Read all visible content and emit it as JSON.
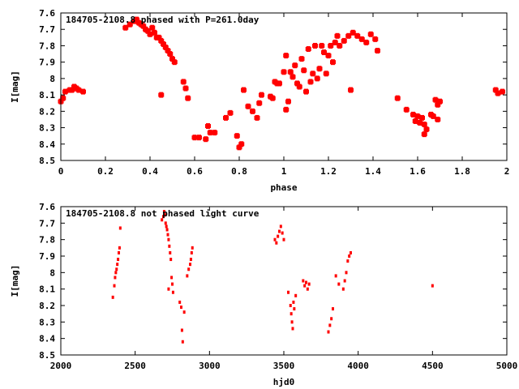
{
  "chart_data": [
    {
      "type": "scatter",
      "title": "184705-2108.8 phased with P=261.0day",
      "xlabel": "phase",
      "ylabel": "I[mag]",
      "xlim": [
        0,
        2
      ],
      "ylim": [
        8.5,
        7.6
      ],
      "y_inverted": true,
      "grid": false,
      "color": "#ff0000",
      "xticks": [
        0,
        0.2,
        0.4,
        0.6,
        0.8,
        1,
        1.2,
        1.4,
        1.6,
        1.8,
        2
      ],
      "xtick_labels": [
        "0",
        "0.2",
        "0.4",
        "0.6",
        "0.8",
        "1",
        "1.2",
        "1.4",
        "1.6",
        "1.8",
        "2"
      ],
      "yticks": [
        7.6,
        7.7,
        7.8,
        7.9,
        8.0,
        8.1,
        8.2,
        8.3,
        8.4,
        8.5
      ],
      "ytick_labels": [
        "7.6",
        "7.7",
        "7.8",
        "7.9",
        "8",
        "8.1",
        "8.2",
        "8.3",
        "8.4",
        "8.5"
      ],
      "points": [
        [
          0.0,
          8.14
        ],
        [
          0.01,
          8.12
        ],
        [
          0.02,
          8.08
        ],
        [
          0.04,
          8.07
        ],
        [
          0.05,
          8.07
        ],
        [
          0.06,
          8.05
        ],
        [
          0.07,
          8.06
        ],
        [
          0.08,
          8.07
        ],
        [
          0.1,
          8.08
        ],
        [
          0.29,
          7.69
        ],
        [
          0.31,
          7.67
        ],
        [
          0.33,
          7.65
        ],
        [
          0.34,
          7.64
        ],
        [
          0.35,
          7.66
        ],
        [
          0.36,
          7.67
        ],
        [
          0.37,
          7.68
        ],
        [
          0.38,
          7.7
        ],
        [
          0.39,
          7.71
        ],
        [
          0.4,
          7.73
        ],
        [
          0.41,
          7.69
        ],
        [
          0.42,
          7.72
        ],
        [
          0.43,
          7.75
        ],
        [
          0.44,
          7.75
        ],
        [
          0.45,
          7.77
        ],
        [
          0.46,
          7.79
        ],
        [
          0.47,
          7.81
        ],
        [
          0.48,
          7.83
        ],
        [
          0.49,
          7.85
        ],
        [
          0.5,
          7.88
        ],
        [
          0.51,
          7.9
        ],
        [
          0.45,
          8.1
        ],
        [
          0.55,
          8.02
        ],
        [
          0.56,
          8.06
        ],
        [
          0.57,
          8.12
        ],
        [
          0.6,
          8.36
        ],
        [
          0.62,
          8.36
        ],
        [
          0.65,
          8.37
        ],
        [
          0.66,
          8.29
        ],
        [
          0.67,
          8.33
        ],
        [
          0.69,
          8.33
        ],
        [
          0.74,
          8.24
        ],
        [
          0.76,
          8.21
        ],
        [
          0.79,
          8.35
        ],
        [
          0.8,
          8.42
        ],
        [
          0.81,
          8.4
        ],
        [
          0.82,
          8.07
        ],
        [
          0.84,
          8.17
        ],
        [
          0.86,
          8.2
        ],
        [
          0.88,
          8.24
        ],
        [
          0.89,
          8.15
        ],
        [
          0.9,
          8.1
        ],
        [
          0.94,
          8.11
        ],
        [
          0.95,
          8.12
        ],
        [
          0.96,
          8.02
        ],
        [
          0.97,
          8.03
        ],
        [
          0.98,
          8.03
        ],
        [
          1.0,
          7.96
        ],
        [
          1.01,
          7.86
        ],
        [
          1.01,
          8.19
        ],
        [
          1.02,
          8.14
        ],
        [
          1.03,
          7.96
        ],
        [
          1.04,
          7.99
        ],
        [
          1.05,
          7.92
        ],
        [
          1.06,
          8.03
        ],
        [
          1.07,
          8.05
        ],
        [
          1.08,
          7.88
        ],
        [
          1.09,
          7.95
        ],
        [
          1.1,
          8.08
        ],
        [
          1.11,
          7.82
        ],
        [
          1.12,
          8.02
        ],
        [
          1.13,
          7.97
        ],
        [
          1.14,
          7.8
        ],
        [
          1.15,
          8.0
        ],
        [
          1.16,
          7.94
        ],
        [
          1.17,
          7.8
        ],
        [
          1.18,
          7.84
        ],
        [
          1.19,
          7.97
        ],
        [
          1.2,
          7.86
        ],
        [
          1.21,
          7.8
        ],
        [
          1.22,
          7.9
        ],
        [
          1.23,
          7.78
        ],
        [
          1.24,
          7.74
        ],
        [
          1.25,
          7.8
        ],
        [
          1.27,
          7.77
        ],
        [
          1.29,
          7.74
        ],
        [
          1.3,
          8.07
        ],
        [
          1.31,
          7.72
        ],
        [
          1.33,
          7.74
        ],
        [
          1.35,
          7.76
        ],
        [
          1.37,
          7.78
        ],
        [
          1.39,
          7.73
        ],
        [
          1.41,
          7.76
        ],
        [
          1.42,
          7.83
        ],
        [
          1.51,
          8.12
        ],
        [
          1.55,
          8.19
        ],
        [
          1.58,
          8.22
        ],
        [
          1.59,
          8.26
        ],
        [
          1.6,
          8.23
        ],
        [
          1.61,
          8.27
        ],
        [
          1.62,
          8.24
        ],
        [
          1.63,
          8.28
        ],
        [
          1.63,
          8.34
        ],
        [
          1.64,
          8.31
        ],
        [
          1.66,
          8.22
        ],
        [
          1.67,
          8.23
        ],
        [
          1.68,
          8.13
        ],
        [
          1.69,
          8.16
        ],
        [
          1.69,
          8.25
        ],
        [
          1.7,
          8.14
        ],
        [
          1.95,
          8.07
        ],
        [
          1.96,
          8.09
        ],
        [
          1.98,
          8.08
        ]
      ]
    },
    {
      "type": "scatter",
      "title": "184705-2108.8 not phased light curve",
      "xlabel": "hjd0",
      "ylabel": "I[mag]",
      "xlim": [
        2000,
        5000
      ],
      "ylim": [
        8.5,
        7.6
      ],
      "y_inverted": true,
      "grid": false,
      "color": "#ff0000",
      "xticks": [
        2000,
        2500,
        3000,
        3500,
        4000,
        4500,
        5000
      ],
      "xtick_labels": [
        "2000",
        "2500",
        "3000",
        "3500",
        "4000",
        "4500",
        "5000"
      ],
      "yticks": [
        7.6,
        7.7,
        7.8,
        7.9,
        8.0,
        8.1,
        8.2,
        8.3,
        8.4,
        8.5
      ],
      "ytick_labels": [
        "7.6",
        "7.7",
        "7.8",
        "7.9",
        "8",
        "8.1",
        "8.2",
        "8.3",
        "8.4",
        "8.5"
      ],
      "points": [
        [
          2350,
          8.15
        ],
        [
          2360,
          8.08
        ],
        [
          2365,
          8.03
        ],
        [
          2370,
          8.0
        ],
        [
          2375,
          7.98
        ],
        [
          2380,
          7.95
        ],
        [
          2385,
          7.92
        ],
        [
          2390,
          7.88
        ],
        [
          2395,
          7.85
        ],
        [
          2400,
          7.73
        ],
        [
          2680,
          7.68
        ],
        [
          2690,
          7.66
        ],
        [
          2695,
          7.63
        ],
        [
          2700,
          7.65
        ],
        [
          2705,
          7.7
        ],
        [
          2710,
          7.72
        ],
        [
          2715,
          7.74
        ],
        [
          2720,
          7.77
        ],
        [
          2725,
          7.8
        ],
        [
          2730,
          7.84
        ],
        [
          2735,
          7.88
        ],
        [
          2740,
          7.92
        ],
        [
          2725,
          8.1
        ],
        [
          2745,
          8.03
        ],
        [
          2750,
          8.07
        ],
        [
          2755,
          8.12
        ],
        [
          2800,
          8.18
        ],
        [
          2810,
          8.21
        ],
        [
          2815,
          8.35
        ],
        [
          2820,
          8.42
        ],
        [
          2830,
          8.24
        ],
        [
          2850,
          8.02
        ],
        [
          2860,
          7.98
        ],
        [
          2870,
          7.95
        ],
        [
          2875,
          7.92
        ],
        [
          2880,
          7.88
        ],
        [
          2885,
          7.85
        ],
        [
          3440,
          7.8
        ],
        [
          3450,
          7.82
        ],
        [
          3460,
          7.78
        ],
        [
          3470,
          7.75
        ],
        [
          3480,
          7.72
        ],
        [
          3490,
          7.76
        ],
        [
          3500,
          7.8
        ],
        [
          3530,
          8.12
        ],
        [
          3545,
          8.2
        ],
        [
          3550,
          8.25
        ],
        [
          3555,
          8.3
        ],
        [
          3560,
          8.34
        ],
        [
          3565,
          8.18
        ],
        [
          3570,
          8.22
        ],
        [
          3580,
          8.14
        ],
        [
          3630,
          8.05
        ],
        [
          3640,
          8.08
        ],
        [
          3650,
          8.06
        ],
        [
          3660,
          8.1
        ],
        [
          3670,
          8.07
        ],
        [
          3800,
          8.36
        ],
        [
          3810,
          8.32
        ],
        [
          3820,
          8.28
        ],
        [
          3830,
          8.22
        ],
        [
          3850,
          8.02
        ],
        [
          3870,
          8.07
        ],
        [
          3900,
          8.1
        ],
        [
          3910,
          8.05
        ],
        [
          3920,
          8.0
        ],
        [
          3930,
          7.93
        ],
        [
          3940,
          7.9
        ],
        [
          3950,
          7.88
        ],
        [
          4500,
          8.08
        ]
      ]
    }
  ]
}
